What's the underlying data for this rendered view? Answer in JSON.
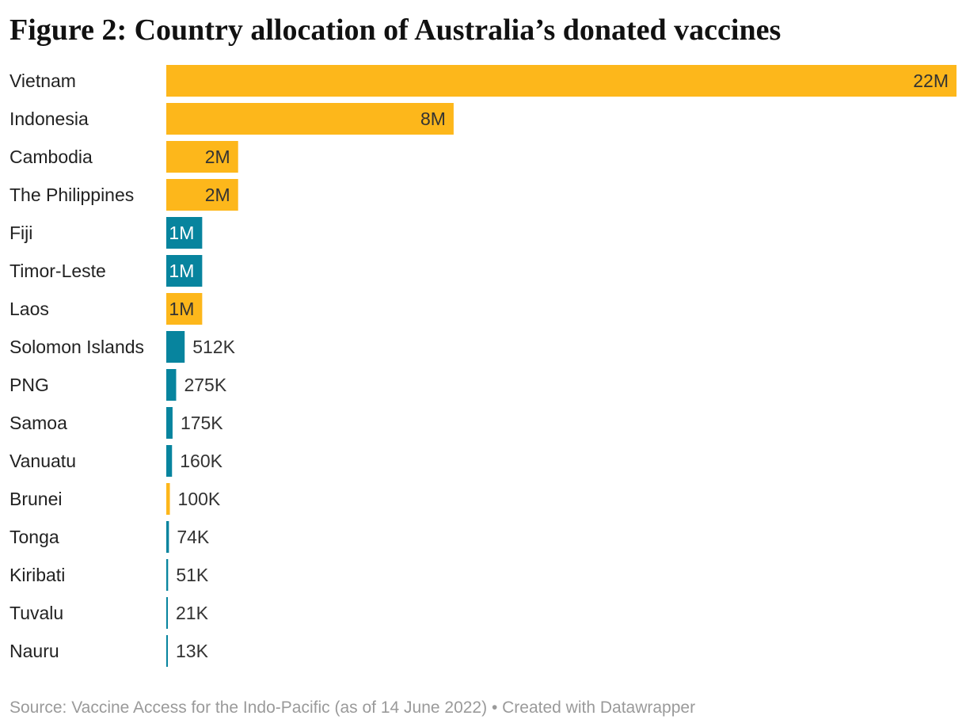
{
  "title": "Figure 2: Country allocation of Australia’s donated vaccines",
  "source": "Source: Vaccine Access for the Indo-Pacific (as of 14 June 2022) • Created with Datawrapper",
  "colors": {
    "yellow": "#fdb71b",
    "teal": "#07849e",
    "label_dark": "#333333",
    "label_light": "#ffffff",
    "source_text": "#9a9a9a"
  },
  "chart_data": {
    "type": "bar",
    "orientation": "horizontal",
    "grid": false,
    "categories": [
      "Vietnam",
      "Indonesia",
      "Cambodia",
      "The Philippines",
      "Fiji",
      "Timor-Leste",
      "Laos",
      "Solomon Islands",
      "PNG",
      "Samoa",
      "Vanuatu",
      "Brunei",
      "Tonga",
      "Kiribati",
      "Tuvalu",
      "Nauru"
    ],
    "values": [
      22000000,
      8000000,
      2000000,
      2000000,
      1000000,
      1000000,
      1000000,
      512000,
      275000,
      175000,
      160000,
      100000,
      74000,
      51000,
      21000,
      13000
    ],
    "value_labels": [
      "22M",
      "8M",
      "2M",
      "2M",
      "1M",
      "1M",
      "1M",
      "512K",
      "275K",
      "175K",
      "160K",
      "100K",
      "74K",
      "51K",
      "21K",
      "13K"
    ],
    "bar_colors": [
      "yellow",
      "yellow",
      "yellow",
      "yellow",
      "teal",
      "teal",
      "yellow",
      "teal",
      "teal",
      "teal",
      "teal",
      "yellow",
      "teal",
      "teal",
      "teal",
      "teal"
    ],
    "xlim": [
      0,
      22000000
    ]
  }
}
